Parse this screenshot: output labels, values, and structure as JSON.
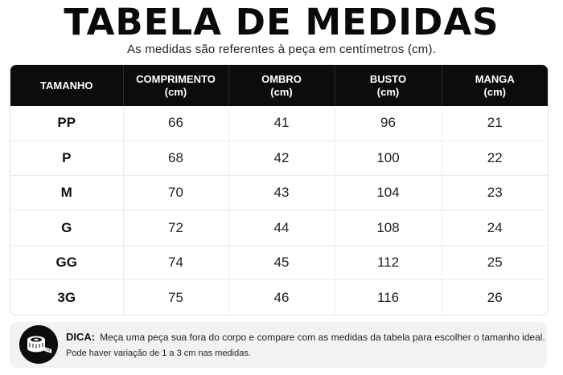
{
  "header": {
    "title": "TABELA DE MEDIDAS",
    "subtitle": "As medidas são referentes à peça em centímetros (cm)."
  },
  "table": {
    "columns": [
      {
        "label": "TAMANHO",
        "unit": ""
      },
      {
        "label": "COMPRIMENTO",
        "unit": "(cm)"
      },
      {
        "label": "OMBRO",
        "unit": "(cm)"
      },
      {
        "label": "BUSTO",
        "unit": "(cm)"
      },
      {
        "label": "MANGA",
        "unit": "(cm)"
      }
    ],
    "rows": [
      [
        "PP",
        "66",
        "41",
        "96",
        "21"
      ],
      [
        "P",
        "68",
        "42",
        "100",
        "22"
      ],
      [
        "M",
        "70",
        "43",
        "104",
        "23"
      ],
      [
        "G",
        "72",
        "44",
        "108",
        "24"
      ],
      [
        "GG",
        "74",
        "45",
        "112",
        "25"
      ],
      [
        "3G",
        "75",
        "46",
        "116",
        "26"
      ]
    ]
  },
  "tip": {
    "icon": "measuring-tape-icon",
    "label": "DICA:",
    "line1": "Meça uma peça sua fora do corpo e compare com as medidas da tabela para escolher o tamanho ideal.",
    "line2": "Pode haver variação de 1 a 3 cm nas medidas."
  },
  "colors": {
    "header_bg": "#0c0c0c",
    "header_text": "#ffffff",
    "tip_bg": "#f2f2f2"
  }
}
